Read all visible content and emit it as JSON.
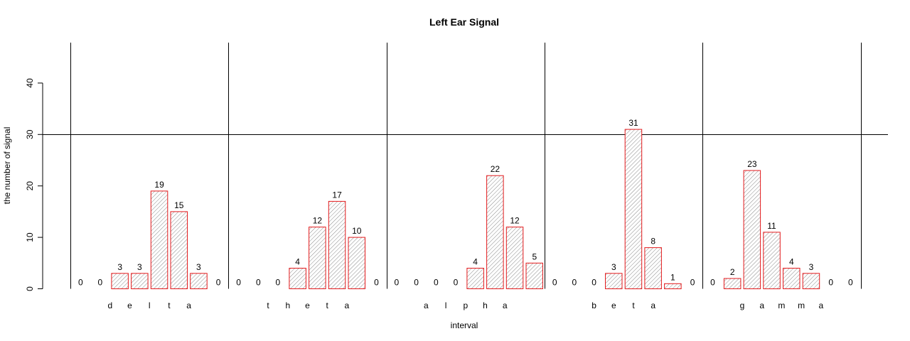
{
  "chart_data": {
    "type": "bar",
    "title": "Left Ear Signal",
    "xlabel": "interval",
    "ylabel": "the number of signal",
    "ylim": [
      0,
      48
    ],
    "yticks": [
      0,
      10,
      20,
      30,
      40
    ],
    "reference_line": 30,
    "bar_color": "#e31a1c",
    "fill_pattern": "hatched",
    "groups": [
      {
        "name": "delta",
        "letters": [
          "d",
          "e",
          "l",
          "t",
          "a"
        ],
        "values": [
          0,
          0,
          3,
          3,
          19,
          15,
          3,
          0
        ]
      },
      {
        "name": "theta",
        "letters": [
          "t",
          "h",
          "e",
          "t",
          "a"
        ],
        "values": [
          0,
          0,
          0,
          4,
          12,
          17,
          10,
          0
        ]
      },
      {
        "name": "alpha",
        "letters": [
          "a",
          "l",
          "p",
          "h",
          "a"
        ],
        "values": [
          0,
          0,
          0,
          0,
          4,
          22,
          12,
          5
        ]
      },
      {
        "name": "beta",
        "letters": [
          "b",
          "e",
          "t",
          "a"
        ],
        "values": [
          0,
          0,
          0,
          3,
          31,
          8,
          1,
          0
        ]
      },
      {
        "name": "gamma",
        "letters": [
          "g",
          "a",
          "m",
          "m",
          "a"
        ],
        "values": [
          0,
          2,
          23,
          11,
          4,
          3,
          0,
          0
        ]
      }
    ]
  }
}
